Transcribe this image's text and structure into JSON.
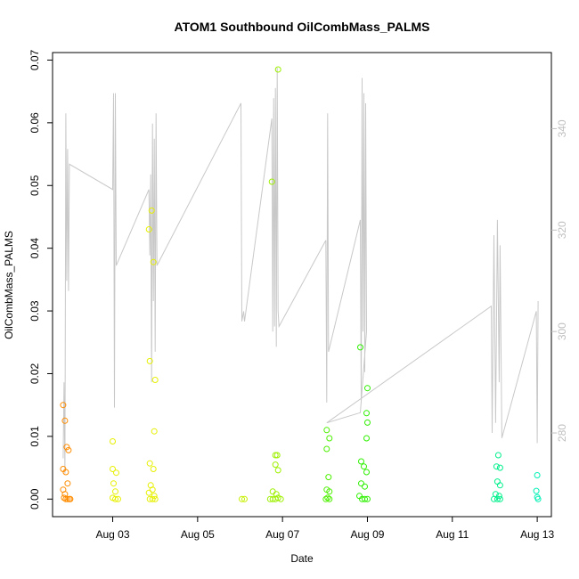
{
  "chart_data": {
    "type": "scatter",
    "title": "ATOM1 Southbound OilCombMass_PALMS",
    "xlabel": "Date",
    "ylabel": "OilCombMass_PALMS",
    "x_ticks": [
      "Aug 03",
      "Aug 05",
      "Aug 07",
      "Aug 09",
      "Aug 11",
      "Aug 13"
    ],
    "y_ticks": [
      "0.00",
      "0.01",
      "0.02",
      "0.03",
      "0.04",
      "0.05",
      "0.06",
      "0.07"
    ],
    "y2_ticks": [
      "280",
      "300",
      "320",
      "340"
    ],
    "xlim": [
      "2016-08-01T14:00",
      "2016-08-13T08:00"
    ],
    "ylim": [
      -0.0028,
      0.0712
    ],
    "y2lim": [
      263.5,
      355
    ],
    "colors": {
      "line": "#c8c8c8",
      "axis": "#000000",
      "right_axis": "#bfbfbf"
    },
    "points": [
      {
        "date": "2016-08-01T20:00",
        "y": 0.015,
        "color": "#ff8c00"
      },
      {
        "date": "2016-08-01T21:00",
        "y": 0.0125,
        "color": "#ff8c00"
      },
      {
        "date": "2016-08-01T22:00",
        "y": 0.0083,
        "color": "#ff8c00"
      },
      {
        "date": "2016-08-01T23:00",
        "y": 0.0078,
        "color": "#ff8c00"
      },
      {
        "date": "2016-08-01T20:00",
        "y": 0.0048,
        "color": "#ff8c00"
      },
      {
        "date": "2016-08-01T21:30",
        "y": 0.0043,
        "color": "#ff8c00"
      },
      {
        "date": "2016-08-01T22:30",
        "y": 0.0025,
        "color": "#ff8c00"
      },
      {
        "date": "2016-08-01T20:00",
        "y": 0.0015,
        "color": "#ff8c00"
      },
      {
        "date": "2016-08-01T21:00",
        "y": 0.0008,
        "color": "#ff8c00"
      },
      {
        "date": "2016-08-01T20:30",
        "y": 0.0002,
        "color": "#ff8c00"
      },
      {
        "date": "2016-08-01T21:30",
        "y": 0.0,
        "color": "#ff8c00"
      },
      {
        "date": "2016-08-01T22:30",
        "y": 0.0,
        "color": "#ff8c00"
      },
      {
        "date": "2016-08-01T23:30",
        "y": 0.0,
        "color": "#ff8c00"
      },
      {
        "date": "2016-08-02T00:00",
        "y": 0.0,
        "color": "#ff8c00"
      },
      {
        "date": "2016-08-03T00:00",
        "y": 0.0092,
        "color": "#e6f000"
      },
      {
        "date": "2016-08-03T00:00",
        "y": 0.0048,
        "color": "#e6f000"
      },
      {
        "date": "2016-08-03T02:00",
        "y": 0.0042,
        "color": "#e6f000"
      },
      {
        "date": "2016-08-03T00:30",
        "y": 0.0025,
        "color": "#e6f000"
      },
      {
        "date": "2016-08-03T01:30",
        "y": 0.0012,
        "color": "#e6f000"
      },
      {
        "date": "2016-08-03T00:00",
        "y": 0.0002,
        "color": "#e6f000"
      },
      {
        "date": "2016-08-03T01:30",
        "y": 0.0,
        "color": "#e6f000"
      },
      {
        "date": "2016-08-03T03:00",
        "y": 0.0,
        "color": "#e6f000"
      },
      {
        "date": "2016-08-03T20:30",
        "y": 0.043,
        "color": "#e6f000"
      },
      {
        "date": "2016-08-03T22:00",
        "y": 0.046,
        "color": "#e6f000"
      },
      {
        "date": "2016-08-03T23:00",
        "y": 0.0378,
        "color": "#e6f000"
      },
      {
        "date": "2016-08-03T21:00",
        "y": 0.022,
        "color": "#e6f000"
      },
      {
        "date": "2016-08-04T00:00",
        "y": 0.019,
        "color": "#e6f000"
      },
      {
        "date": "2016-08-03T23:30",
        "y": 0.0108,
        "color": "#e6f000"
      },
      {
        "date": "2016-08-03T21:00",
        "y": 0.0057,
        "color": "#e6f000"
      },
      {
        "date": "2016-08-03T23:00",
        "y": 0.0048,
        "color": "#e6f000"
      },
      {
        "date": "2016-08-03T21:30",
        "y": 0.0022,
        "color": "#e6f000"
      },
      {
        "date": "2016-08-03T22:30",
        "y": 0.0015,
        "color": "#e6f000"
      },
      {
        "date": "2016-08-03T20:30",
        "y": 0.001,
        "color": "#e6f000"
      },
      {
        "date": "2016-08-03T23:30",
        "y": 0.0005,
        "color": "#e6f000"
      },
      {
        "date": "2016-08-03T21:00",
        "y": 0.0,
        "color": "#e6f000"
      },
      {
        "date": "2016-08-03T22:30",
        "y": 0.0,
        "color": "#e6f000"
      },
      {
        "date": "2016-08-04T00:00",
        "y": 0.0,
        "color": "#e6f000"
      },
      {
        "date": "2016-08-06T01:00",
        "y": 0.0,
        "color": "#c6f000"
      },
      {
        "date": "2016-08-06T02:30",
        "y": 0.0,
        "color": "#c6f000"
      },
      {
        "date": "2016-08-06T18:00",
        "y": 0.0506,
        "color": "#9ef000"
      },
      {
        "date": "2016-08-06T21:30",
        "y": 0.0685,
        "color": "#9ef000"
      },
      {
        "date": "2016-08-06T20:00",
        "y": 0.007,
        "color": "#9ef000"
      },
      {
        "date": "2016-08-06T21:00",
        "y": 0.007,
        "color": "#9ef000"
      },
      {
        "date": "2016-08-06T20:00",
        "y": 0.0055,
        "color": "#9ef000"
      },
      {
        "date": "2016-08-06T21:30",
        "y": 0.0046,
        "color": "#9ef000"
      },
      {
        "date": "2016-08-06T18:30",
        "y": 0.0012,
        "color": "#9ef000"
      },
      {
        "date": "2016-08-06T20:30",
        "y": 0.0008,
        "color": "#9ef000"
      },
      {
        "date": "2016-08-06T17:00",
        "y": 0.0,
        "color": "#9ef000"
      },
      {
        "date": "2016-08-06T18:30",
        "y": 0.0,
        "color": "#9ef000"
      },
      {
        "date": "2016-08-06T20:00",
        "y": 0.0,
        "color": "#9ef000"
      },
      {
        "date": "2016-08-06T21:30",
        "y": 0.0002,
        "color": "#9ef000"
      },
      {
        "date": "2016-08-06T23:00",
        "y": 0.0,
        "color": "#9ef000"
      },
      {
        "date": "2016-08-08T01:00",
        "y": 0.011,
        "color": "#4cf000"
      },
      {
        "date": "2016-08-08T02:30",
        "y": 0.0097,
        "color": "#4cf000"
      },
      {
        "date": "2016-08-08T01:00",
        "y": 0.008,
        "color": "#4cf000"
      },
      {
        "date": "2016-08-08T02:00",
        "y": 0.0035,
        "color": "#4cf000"
      },
      {
        "date": "2016-08-08T01:00",
        "y": 0.0015,
        "color": "#4cf000"
      },
      {
        "date": "2016-08-08T02:30",
        "y": 0.0012,
        "color": "#4cf000"
      },
      {
        "date": "2016-08-08T00:30",
        "y": 0.0,
        "color": "#4cf000"
      },
      {
        "date": "2016-08-08T01:30",
        "y": 0.0002,
        "color": "#4cf000"
      },
      {
        "date": "2016-08-08T02:30",
        "y": 0.0,
        "color": "#4cf000"
      },
      {
        "date": "2016-08-08T20:00",
        "y": 0.0242,
        "color": "#2ef000"
      },
      {
        "date": "2016-08-09T00:00",
        "y": 0.0177,
        "color": "#2ef000"
      },
      {
        "date": "2016-08-08T23:30",
        "y": 0.0137,
        "color": "#2ef000"
      },
      {
        "date": "2016-08-09T00:00",
        "y": 0.0122,
        "color": "#2ef000"
      },
      {
        "date": "2016-08-08T23:30",
        "y": 0.0097,
        "color": "#2ef000"
      },
      {
        "date": "2016-08-08T20:30",
        "y": 0.006,
        "color": "#2ef000"
      },
      {
        "date": "2016-08-08T22:00",
        "y": 0.0052,
        "color": "#2ef000"
      },
      {
        "date": "2016-08-08T23:30",
        "y": 0.0043,
        "color": "#2ef000"
      },
      {
        "date": "2016-08-08T20:30",
        "y": 0.0025,
        "color": "#2ef000"
      },
      {
        "date": "2016-08-08T22:30",
        "y": 0.002,
        "color": "#2ef000"
      },
      {
        "date": "2016-08-08T19:30",
        "y": 0.0005,
        "color": "#2ef000"
      },
      {
        "date": "2016-08-08T21:00",
        "y": 0.0,
        "color": "#2ef000"
      },
      {
        "date": "2016-08-08T22:30",
        "y": 0.0,
        "color": "#2ef000"
      },
      {
        "date": "2016-08-09T00:00",
        "y": 0.0,
        "color": "#2ef000"
      },
      {
        "date": "2016-08-12T02:00",
        "y": 0.007,
        "color": "#00f08c"
      },
      {
        "date": "2016-08-12T01:00",
        "y": 0.0052,
        "color": "#00f08c"
      },
      {
        "date": "2016-08-12T03:00",
        "y": 0.005,
        "color": "#00f08c"
      },
      {
        "date": "2016-08-12T01:30",
        "y": 0.0028,
        "color": "#00f08c"
      },
      {
        "date": "2016-08-12T03:00",
        "y": 0.0022,
        "color": "#00f08c"
      },
      {
        "date": "2016-08-12T00:30",
        "y": 0.0008,
        "color": "#00f08c"
      },
      {
        "date": "2016-08-12T02:30",
        "y": 0.0005,
        "color": "#00f08c"
      },
      {
        "date": "2016-08-11T23:30",
        "y": 0.0,
        "color": "#00f08c"
      },
      {
        "date": "2016-08-12T01:30",
        "y": 0.0,
        "color": "#00f08c"
      },
      {
        "date": "2016-08-12T03:00",
        "y": 0.0,
        "color": "#00f08c"
      },
      {
        "date": "2016-08-13T00:00",
        "y": 0.0038,
        "color": "#00f0b4"
      },
      {
        "date": "2016-08-12T23:30",
        "y": 0.0013,
        "color": "#00f0b4"
      },
      {
        "date": "2016-08-13T00:00",
        "y": 0.0003,
        "color": "#00f0b4"
      },
      {
        "date": "2016-08-13T00:30",
        "y": 0.0,
        "color": "#00f0b4"
      }
    ],
    "line_series": {
      "axis": "right",
      "points": [
        [
          "2016-08-01T20:00",
          275
        ],
        [
          "2016-08-01T20:30",
          290
        ],
        [
          "2016-08-01T21:00",
          272
        ],
        [
          "2016-08-01T21:30",
          343
        ],
        [
          "2016-08-01T22:00",
          310
        ],
        [
          "2016-08-01T22:30",
          336
        ],
        [
          "2016-08-01T23:00",
          308
        ],
        [
          "2016-08-01T23:30",
          333
        ],
        [
          "2016-08-03T00:00",
          328
        ],
        [
          "2016-08-03T00:30",
          347
        ],
        [
          "2016-08-03T01:00",
          285
        ],
        [
          "2016-08-03T01:30",
          347
        ],
        [
          "2016-08-03T02:00",
          313
        ],
        [
          "2016-08-03T20:30",
          328
        ],
        [
          "2016-08-03T21:00",
          315
        ],
        [
          "2016-08-03T21:30",
          331
        ],
        [
          "2016-08-03T22:00",
          290
        ],
        [
          "2016-08-03T22:30",
          341
        ],
        [
          "2016-08-03T23:00",
          306
        ],
        [
          "2016-08-03T23:30",
          338
        ],
        [
          "2016-08-04T00:00",
          296
        ],
        [
          "2016-08-04T00:30",
          343
        ],
        [
          "2016-08-04T01:00",
          313
        ],
        [
          "2016-08-06T00:30",
          345
        ],
        [
          "2016-08-06T01:00",
          302
        ],
        [
          "2016-08-06T02:00",
          304
        ],
        [
          "2016-08-06T02:30",
          302
        ],
        [
          "2016-08-06T18:00",
          342
        ],
        [
          "2016-08-06T18:30",
          300
        ],
        [
          "2016-08-06T19:00",
          346
        ],
        [
          "2016-08-06T19:30",
          301
        ],
        [
          "2016-08-06T20:00",
          348
        ],
        [
          "2016-08-06T20:30",
          297
        ],
        [
          "2016-08-06T21:00",
          352
        ],
        [
          "2016-08-06T21:30",
          304
        ],
        [
          "2016-08-06T22:00",
          301
        ],
        [
          "2016-08-08T00:30",
          318
        ],
        [
          "2016-08-08T01:00",
          286
        ],
        [
          "2016-08-08T01:30",
          343
        ],
        [
          "2016-08-08T02:00",
          296
        ],
        [
          "2016-08-08T20:00",
          322
        ],
        [
          "2016-08-08T20:30",
          286
        ],
        [
          "2016-08-08T21:00",
          350
        ],
        [
          "2016-08-08T21:30",
          300
        ],
        [
          "2016-08-08T22:00",
          347
        ],
        [
          "2016-08-08T22:30",
          292
        ],
        [
          "2016-08-08T23:00",
          345
        ],
        [
          "2016-08-08T23:30",
          300
        ],
        [
          "2016-08-08T20:00",
          284
        ],
        [
          "2016-08-08T01:00",
          282
        ],
        [
          "2016-08-11T22:00",
          305
        ],
        [
          "2016-08-11T22:30",
          280
        ],
        [
          "2016-08-11T23:30",
          319
        ],
        [
          "2016-08-12T00:30",
          282
        ],
        [
          "2016-08-12T01:30",
          322
        ],
        [
          "2016-08-12T02:30",
          290
        ],
        [
          "2016-08-12T03:00",
          317
        ],
        [
          "2016-08-12T03:30",
          298
        ],
        [
          "2016-08-12T04:00",
          279
        ],
        [
          "2016-08-12T23:30",
          304
        ],
        [
          "2016-08-13T00:00",
          278
        ],
        [
          "2016-08-13T00:30",
          306
        ]
      ]
    }
  }
}
